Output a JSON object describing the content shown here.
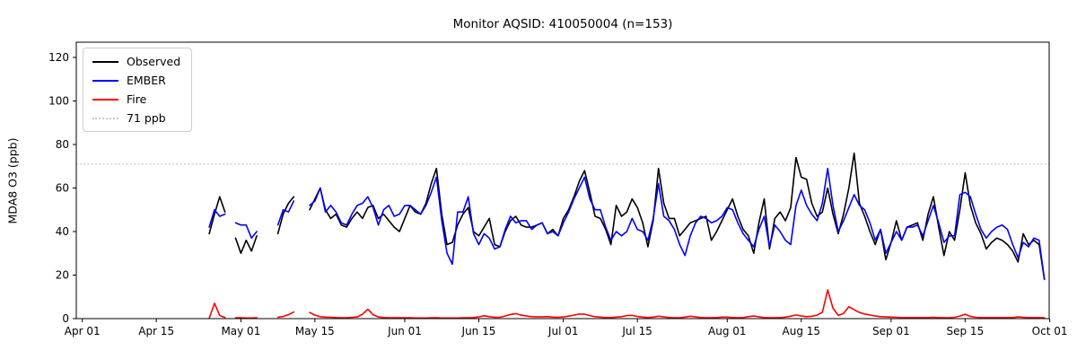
{
  "figure": {
    "title": "Monitor AQSID: 410050004 (n=153)",
    "ylabel": "MDA8 O3 (ppb)"
  },
  "legend": {
    "items": [
      {
        "label": "Observed",
        "color": "#000000",
        "style": "solid"
      },
      {
        "label": "EMBER",
        "color": "#0000ff",
        "style": "solid"
      },
      {
        "label": "Fire",
        "color": "#ff0000",
        "style": "solid"
      },
      {
        "label": "71 ppb",
        "color": "#c9c9c9",
        "style": "dotted"
      }
    ]
  },
  "chart_data": {
    "type": "line",
    "title": "Monitor AQSID: 410050004 (n=153)",
    "xlabel": "",
    "ylabel": "MDA8 O3 (ppb)",
    "ylim": [
      0,
      127
    ],
    "yticks": [
      0,
      20,
      40,
      60,
      80,
      100,
      120
    ],
    "xticks": [
      {
        "label": "Apr 01",
        "day": 0
      },
      {
        "label": "Apr 15",
        "day": 14
      },
      {
        "label": "May 01",
        "day": 30
      },
      {
        "label": "May 15",
        "day": 44
      },
      {
        "label": "Jun 01",
        "day": 61
      },
      {
        "label": "Jun 15",
        "day": 75
      },
      {
        "label": "Jul 01",
        "day": 91
      },
      {
        "label": "Jul 15",
        "day": 105
      },
      {
        "label": "Aug 01",
        "day": 122
      },
      {
        "label": "Aug 15",
        "day": 136
      },
      {
        "label": "Sep 01",
        "day": 153
      },
      {
        "label": "Sep 15",
        "day": 167
      },
      {
        "label": "Oct 01",
        "day": 183
      }
    ],
    "threshold": {
      "value": 71,
      "label": "71 ppb",
      "color": "#c9c9c9",
      "linestyle": "dotted"
    },
    "grid": false,
    "legend_position": "upper left",
    "x_start_day_offset": 24,
    "x": [
      "Apr 25",
      "Apr 26",
      "Apr 27",
      "Apr 28",
      "Apr 29",
      "Apr 30",
      "May 01",
      "May 02",
      "May 03",
      "May 04",
      "May 05",
      "May 06",
      "May 07",
      "May 08",
      "May 09",
      "May 10",
      "May 11",
      "May 12",
      "May 13",
      "May 14",
      "May 15",
      "May 16",
      "May 17",
      "May 18",
      "May 19",
      "May 20",
      "May 21",
      "May 22",
      "May 23",
      "May 24",
      "May 25",
      "May 26",
      "May 27",
      "May 28",
      "May 29",
      "May 30",
      "May 31",
      "Jun 01",
      "Jun 02",
      "Jun 03",
      "Jun 04",
      "Jun 05",
      "Jun 06",
      "Jun 07",
      "Jun 08",
      "Jun 09",
      "Jun 10",
      "Jun 11",
      "Jun 12",
      "Jun 13",
      "Jun 14",
      "Jun 15",
      "Jun 16",
      "Jun 17",
      "Jun 18",
      "Jun 19",
      "Jun 20",
      "Jun 21",
      "Jun 22",
      "Jun 23",
      "Jun 24",
      "Jun 25",
      "Jun 26",
      "Jun 27",
      "Jun 28",
      "Jun 29",
      "Jun 30",
      "Jul 01",
      "Jul 02",
      "Jul 03",
      "Jul 04",
      "Jul 05",
      "Jul 06",
      "Jul 07",
      "Jul 08",
      "Jul 09",
      "Jul 10",
      "Jul 11",
      "Jul 12",
      "Jul 13",
      "Jul 14",
      "Jul 15",
      "Jul 16",
      "Jul 17",
      "Jul 18",
      "Jul 19",
      "Jul 20",
      "Jul 21",
      "Jul 22",
      "Jul 23",
      "Jul 24",
      "Jul 25",
      "Jul 26",
      "Jul 27",
      "Jul 28",
      "Jul 29",
      "Jul 30",
      "Jul 31",
      "Aug 01",
      "Aug 02",
      "Aug 03",
      "Aug 04",
      "Aug 05",
      "Aug 06",
      "Aug 07",
      "Aug 08",
      "Aug 09",
      "Aug 10",
      "Aug 11",
      "Aug 12",
      "Aug 13",
      "Aug 14",
      "Aug 15",
      "Aug 16",
      "Aug 17",
      "Aug 18",
      "Aug 19",
      "Aug 20",
      "Aug 21",
      "Aug 22",
      "Aug 23",
      "Aug 24",
      "Aug 25",
      "Aug 26",
      "Aug 27",
      "Aug 28",
      "Aug 29",
      "Aug 30",
      "Aug 31",
      "Sep 01",
      "Sep 02",
      "Sep 03",
      "Sep 04",
      "Sep 05",
      "Sep 06",
      "Sep 07",
      "Sep 08",
      "Sep 09",
      "Sep 10",
      "Sep 11",
      "Sep 12",
      "Sep 13",
      "Sep 14",
      "Sep 15",
      "Sep 16",
      "Sep 17",
      "Sep 18",
      "Sep 19",
      "Sep 20",
      "Sep 21",
      "Sep 22",
      "Sep 23",
      "Sep 24",
      "Sep 25",
      "Sep 26",
      "Sep 27",
      "Sep 28",
      "Sep 29",
      "Sep 30"
    ],
    "series": [
      {
        "name": "Observed",
        "color": "#000000",
        "values": [
          39,
          48,
          56,
          49,
          null,
          37,
          30,
          36,
          31,
          38,
          null,
          null,
          null,
          39,
          48,
          53,
          56,
          null,
          null,
          50,
          55,
          60,
          50,
          46,
          48,
          43,
          42,
          46,
          49,
          46,
          51,
          52,
          46,
          48,
          45,
          42,
          40,
          46,
          52,
          49,
          48,
          53,
          62,
          69,
          48,
          34,
          35,
          43,
          48,
          51,
          40,
          38,
          42,
          46,
          34,
          33,
          40,
          45,
          47,
          43,
          42,
          42,
          43,
          44,
          39,
          41,
          38,
          46,
          50,
          56,
          63,
          68,
          58,
          47,
          46,
          41,
          34,
          52,
          47,
          49,
          55,
          51,
          44,
          33,
          45,
          69,
          53,
          46,
          46,
          38,
          41,
          44,
          45,
          46,
          47,
          36,
          40,
          45,
          50,
          55,
          47,
          41,
          38,
          30,
          44,
          55,
          32,
          46,
          49,
          45,
          51,
          74,
          65,
          64,
          53,
          47,
          49,
          60,
          48,
          39,
          48,
          60,
          76,
          53,
          47,
          40,
          34,
          41,
          27,
          35,
          45,
          36,
          42,
          43,
          44,
          36,
          48,
          56,
          42,
          29,
          40,
          36,
          50,
          67,
          52,
          44,
          39,
          32,
          35,
          37,
          36,
          34,
          31,
          26,
          39,
          34,
          36,
          34,
          18
        ]
      },
      {
        "name": "EMBER",
        "color": "#0000ff",
        "values": [
          42,
          50,
          47,
          48,
          null,
          44,
          43,
          43,
          37,
          40,
          null,
          null,
          null,
          43,
          50,
          49,
          54,
          null,
          null,
          52,
          54,
          60,
          49,
          52,
          49,
          44,
          43,
          48,
          52,
          53,
          56,
          51,
          43,
          50,
          52,
          47,
          48,
          52,
          52,
          50,
          48,
          52,
          58,
          65,
          45,
          30,
          25,
          49,
          49,
          56,
          39,
          34,
          39,
          37,
          32,
          33,
          41,
          47,
          44,
          45,
          45,
          41,
          43,
          44,
          39,
          40,
          38,
          44,
          49,
          55,
          60,
          65,
          55,
          50,
          50,
          42,
          36,
          40,
          38,
          40,
          46,
          41,
          40,
          36,
          46,
          62,
          47,
          45,
          41,
          34,
          29,
          38,
          44,
          47,
          46,
          44,
          45,
          47,
          51,
          50,
          44,
          39,
          36,
          33,
          41,
          47,
          33,
          43,
          40,
          36,
          34,
          52,
          59,
          52,
          48,
          45,
          53,
          69,
          52,
          40,
          45,
          51,
          57,
          52,
          50,
          44,
          36,
          41,
          30,
          35,
          40,
          36,
          42,
          42,
          43,
          38,
          45,
          52,
          44,
          35,
          38,
          38,
          57,
          58,
          56,
          48,
          41,
          37,
          40,
          42,
          43,
          41,
          34,
          28,
          35,
          33,
          37,
          36,
          18
        ]
      },
      {
        "name": "Fire",
        "color": "#ff0000",
        "values": [
          0.2,
          7,
          1.4,
          0.5,
          null,
          0.4,
          0.4,
          0.3,
          0.3,
          0.4,
          null,
          null,
          null,
          0.6,
          1,
          1.8,
          3,
          null,
          null,
          2.8,
          1.6,
          0.9,
          0.7,
          0.6,
          0.5,
          0.4,
          0.4,
          0.6,
          0.8,
          2,
          4.3,
          1.8,
          0.8,
          0.5,
          0.4,
          0.4,
          0.4,
          0.4,
          0.4,
          0.3,
          0.3,
          0.3,
          0.4,
          0.4,
          0.3,
          0.3,
          0.3,
          0.3,
          0.4,
          0.4,
          0.5,
          0.8,
          1.3,
          0.9,
          0.6,
          0.6,
          1.2,
          1.9,
          2.3,
          1.6,
          1.2,
          0.9,
          0.8,
          0.8,
          0.9,
          0.7,
          0.6,
          0.8,
          1.1,
          1.6,
          2.1,
          2,
          1.4,
          0.9,
          0.7,
          0.5,
          0.5,
          0.7,
          0.9,
          1.4,
          1.5,
          1,
          0.7,
          0.5,
          0.7,
          1.1,
          0.8,
          0.5,
          0.4,
          0.4,
          0.7,
          1.1,
          0.8,
          0.5,
          0.4,
          0.4,
          0.5,
          0.7,
          0.7,
          0.5,
          0.4,
          0.5,
          0.9,
          1.2,
          0.8,
          0.5,
          0.4,
          0.4,
          0.5,
          0.7,
          1.1,
          1.7,
          1.2,
          0.9,
          1.1,
          1.6,
          2.9,
          13.2,
          4.8,
          1.5,
          2.4,
          5.5,
          4.1,
          2.8,
          2.1,
          1.7,
          1.2,
          0.9,
          0.8,
          0.7,
          0.6,
          0.5,
          0.5,
          0.5,
          0.5,
          0.5,
          0.5,
          0.6,
          0.5,
          0.4,
          0.4,
          0.6,
          1.2,
          2,
          1,
          0.6,
          0.5,
          0.5,
          0.5,
          0.5,
          0.5,
          0.5,
          0.5,
          0.8,
          0.6,
          0.5,
          0.5,
          0.5,
          0.4
        ]
      }
    ]
  }
}
